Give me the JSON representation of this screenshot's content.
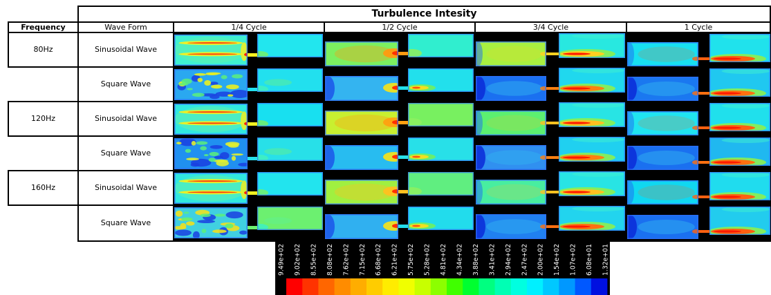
{
  "table": {
    "title": "Turbulence Intesity",
    "headers": {
      "frequency": "Frequency",
      "wave_form": "Wave Form",
      "cycles": [
        "1/4 Cycle",
        "1/2 Cycle",
        "3/4 Cycle",
        "1 Cycle"
      ]
    },
    "groups": [
      {
        "frequency": "80Hz",
        "rows": [
          {
            "wave_form": "Sinusoidal Wave",
            "cells": [
              {
                "left": "#3ff0d0",
                "right": "#22e6ee",
                "hot": "#f4f020"
              },
              {
                "left": "#7cf060",
                "right": "#30eecf",
                "hot": "#ff9a10"
              },
              {
                "left": "#a8f040",
                "right": "#28e8e0",
                "hot": "#ffd020"
              },
              {
                "left": "#18e0f0",
                "right": "#20e2ec",
                "hot": "#ff6010"
              }
            ]
          },
          {
            "wave_form": "Square Wave",
            "cells": [
              {
                "left": "#2aa8f0",
                "right": "#22e0ee",
                "hot": "#e8f020"
              },
              {
                "left": "#34b4f0",
                "right": "#22e0ec",
                "hot": "#f0e020"
              },
              {
                "left": "#1a70f0",
                "right": "#20d8ee",
                "hot": "#ff8010"
              },
              {
                "left": "#1a78f0",
                "right": "#20c8f0",
                "hot": "#ff7010"
              }
            ]
          }
        ]
      },
      {
        "frequency": "120Hz",
        "rows": [
          {
            "wave_form": "Sinusoidal Wave",
            "cells": [
              {
                "left": "#30e8e0",
                "right": "#18e0f0",
                "hot": "#f0f020"
              },
              {
                "left": "#c8f030",
                "right": "#78f060",
                "hot": "#ffa010"
              },
              {
                "left": "#5cf070",
                "right": "#28e4e4",
                "hot": "#ffc020"
              },
              {
                "left": "#20e4f0",
                "right": "#20e0ec",
                "hot": "#ff6010"
              }
            ]
          },
          {
            "wave_form": "Square Wave",
            "cells": [
              {
                "left": "#2090f0",
                "right": "#28e0e8",
                "hot": "#e0f030"
              },
              {
                "left": "#28bcf0",
                "right": "#28e0e8",
                "hot": "#f0e020"
              },
              {
                "left": "#3090f0",
                "right": "#20d0f0",
                "hot": "#ff8010"
              },
              {
                "left": "#1a70f0",
                "right": "#20b8f0",
                "hot": "#ff7010"
              }
            ]
          }
        ]
      },
      {
        "frequency": "160Hz",
        "rows": [
          {
            "wave_form": "Sinusoidal Wave",
            "cells": [
              {
                "left": "#30e8e0",
                "right": "#22e4ee",
                "hot": "#f0f020"
              },
              {
                "left": "#a0f040",
                "right": "#60ee80",
                "hot": "#ffc020"
              },
              {
                "left": "#48eea0",
                "right": "#28e4e4",
                "hot": "#ffc020"
              },
              {
                "left": "#10d8f0",
                "right": "#20dcee",
                "hot": "#ff6010"
              }
            ]
          },
          {
            "wave_form": "Square Wave",
            "cells": [
              {
                "left": "#40d0e0",
                "right": "#6cf070",
                "hot": "#f0e020"
              },
              {
                "left": "#30b0f0",
                "right": "#22dcec",
                "hot": "#f0e020"
              },
              {
                "left": "#2080f0",
                "right": "#22d4ee",
                "hot": "#ff7010"
              },
              {
                "left": "#1a70f0",
                "right": "#22ccee",
                "hot": "#ff6010"
              }
            ]
          }
        ]
      }
    ]
  },
  "colorbar": {
    "labels": [
      "9.49e+02",
      "9.02e+02",
      "8.55e+02",
      "8.08e+02",
      "7.62e+02",
      "7.15e+02",
      "6.68e+02",
      "6.21e+02",
      "5.75e+02",
      "5.28e+02",
      "4.81e+02",
      "4.34e+02",
      "3.88e+02",
      "3.41e+02",
      "2.94e+02",
      "2.47e+02",
      "2.00e+02",
      "1.54e+02",
      "1.07e+02",
      "6.08e+01",
      "1.32e+01"
    ],
    "colors": [
      "#ff0000",
      "#ff3300",
      "#ff6600",
      "#ff8c00",
      "#ffad00",
      "#ffcc00",
      "#ffec00",
      "#f0ff00",
      "#c8ff00",
      "#8cff00",
      "#40ff00",
      "#00ff30",
      "#00ff80",
      "#00ffb4",
      "#00ffe0",
      "#00f0ff",
      "#00c8ff",
      "#0098ff",
      "#0058ff",
      "#0010e0"
    ]
  }
}
